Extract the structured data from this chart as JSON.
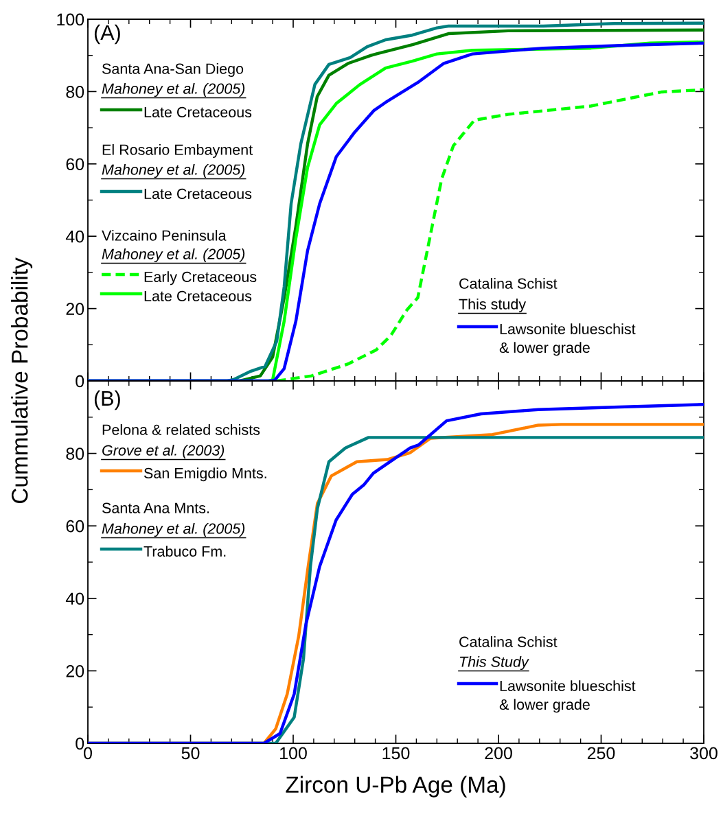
{
  "chart_data": [
    {
      "type": "line",
      "ylabel": "Cummulative Probability",
      "xlim": [
        0,
        300
      ],
      "xticks": [
        0,
        50,
        100,
        150,
        200,
        250,
        300
      ],
      "ylim": [
        0,
        100
      ],
      "yticks": [
        0,
        20,
        40,
        60,
        80,
        100
      ],
      "tick_labels": "y",
      "legend": "left",
      "annotations": [
        "(A)",
        "Santa Ana-San Diego",
        "Mahoney et al. (2005)",
        "El Rosario Embayment",
        "Mahoney et al. (2005)",
        "Vizcaino Peninsula",
        "Mahoney et al. (2005)",
        "Catalina Schist",
        "This study"
      ],
      "series": [
        {
          "name": "Late Cretaceous",
          "color": "#008000",
          "line_style": "solid",
          "x": [
            0,
            74,
            84,
            90,
            95.6,
            101.3,
            107,
            111.7,
            117.4,
            126.8,
            138,
            141,
            158.4,
            175.6,
            204.7,
            300
          ],
          "values": [
            0,
            0,
            1.4,
            6.6,
            23,
            42.7,
            65.5,
            78.6,
            84.5,
            87.8,
            90,
            90.5,
            93,
            96,
            96.8,
            97
          ]
        },
        {
          "name": "Late Cretaceous",
          "color": "#008080",
          "line_style": "solid",
          "x": [
            0,
            68,
            71,
            79.4,
            86.3,
            92,
            95.6,
            99,
            103.7,
            110.6,
            117.4,
            127.8,
            136,
            145,
            158,
            170,
            175.6,
            221.8,
            256.5,
            300
          ],
          "values": [
            0,
            0,
            0.4,
            2.7,
            4,
            11,
            26,
            49,
            65.5,
            82,
            87.5,
            89.4,
            92.4,
            94.3,
            95.6,
            97.6,
            98.1,
            98.1,
            98.8,
            98.9
          ]
        },
        {
          "name": "Early Cretaceous",
          "color": "#00ff00",
          "line_style": "dashed",
          "x": [
            92,
            109,
            126.8,
            140.5,
            147.5,
            155.5,
            160.7,
            165.3,
            168.8,
            172.3,
            178,
            188.3,
            204.6,
            227.6,
            245,
            256.5,
            279.6,
            300
          ],
          "values": [
            0,
            1.4,
            4.7,
            8.6,
            12.5,
            19.7,
            23,
            36,
            45.9,
            55.8,
            65,
            72.1,
            73.7,
            75,
            76,
            77.3,
            79.9,
            80.5
          ]
        },
        {
          "name": "Late Cretaceous",
          "color": "#00ff00",
          "line_style": "solid",
          "x": [
            0,
            88,
            90,
            95.6,
            101.3,
            107,
            112.9,
            121,
            132.4,
            145,
            158,
            170,
            187.3,
            245,
            273.8,
            300
          ],
          "values": [
            0,
            0,
            0.3,
            16.5,
            39.4,
            59,
            70.8,
            76.7,
            81.9,
            86.5,
            88.4,
            90.4,
            91.4,
            92,
            93.4,
            93.7
          ]
        },
        {
          "name": "Lawsonite blueschist\n& lower grade",
          "color": "#0000ff",
          "line_style": "solid",
          "x": [
            0,
            89,
            91,
            95.6,
            101.3,
            107,
            112.9,
            121,
            130,
            139.4,
            145,
            160.7,
            173.4,
            187.3,
            221.8,
            262,
            300
          ],
          "values": [
            0,
            0,
            0.2,
            3.4,
            16.5,
            36,
            49,
            62,
            68.8,
            74.8,
            77,
            82.5,
            87.8,
            90.4,
            92,
            92.8,
            93.4
          ]
        }
      ]
    },
    {
      "type": "line",
      "xlabel": "Zircon U-Pb Age (Ma)",
      "xlim": [
        0,
        300
      ],
      "xticks": [
        0,
        50,
        100,
        150,
        200,
        250,
        300
      ],
      "ylim": [
        0,
        100
      ],
      "yticks": [
        0,
        20,
        40,
        60,
        80,
        {
          "value": 100,
          "label": null
        }
      ],
      "legend": "left",
      "annotations": [
        "(B)",
        "Pelona & related schists",
        "Grove et al. (2003)",
        "Santa Ana Mnts.",
        "Mahoney et al. (2005)",
        "Catalina Schist",
        "This Study"
      ],
      "series": [
        {
          "name": "San Emigdio Mnts.",
          "color": "#ff8000",
          "line_style": "solid",
          "x": [
            0,
            85.8,
            91.5,
            97.1,
            102.7,
            107.3,
            111.8,
            118.6,
            131,
            145.8,
            157,
            166.9,
            197,
            219.4,
            230.6,
            300
          ],
          "values": [
            0,
            0,
            4,
            13.6,
            29.6,
            48.8,
            66.2,
            73.8,
            77.7,
            78.3,
            80.2,
            84.2,
            85.2,
            87.8,
            88,
            88
          ]
        },
        {
          "name": "Trabuco Fm.",
          "color": "#008080",
          "line_style": "solid",
          "x": [
            0,
            91.5,
            100.5,
            105,
            108.4,
            111.8,
            117.4,
            125.4,
            136.7,
            300
          ],
          "values": [
            0,
            0,
            7.2,
            23.2,
            48.8,
            64.8,
            77.7,
            81.5,
            84.4,
            84.4
          ]
        },
        {
          "name": "Lawsonite blueschist\n& lower grade",
          "color": "#0000ff",
          "line_style": "solid",
          "x": [
            0,
            85.8,
            93.6,
            100.5,
            106.2,
            112.9,
            120.9,
            128.8,
            134.4,
            139,
            141,
            157,
            161,
            174.7,
            191.5,
            219.4,
            258.8,
            300
          ],
          "values": [
            0,
            0,
            2.7,
            13.6,
            32.8,
            48.8,
            61.6,
            68.7,
            71.3,
            74.5,
            75.3,
            81.5,
            82.3,
            89,
            90.9,
            92.1,
            92.8,
            93.5
          ]
        }
      ]
    }
  ]
}
